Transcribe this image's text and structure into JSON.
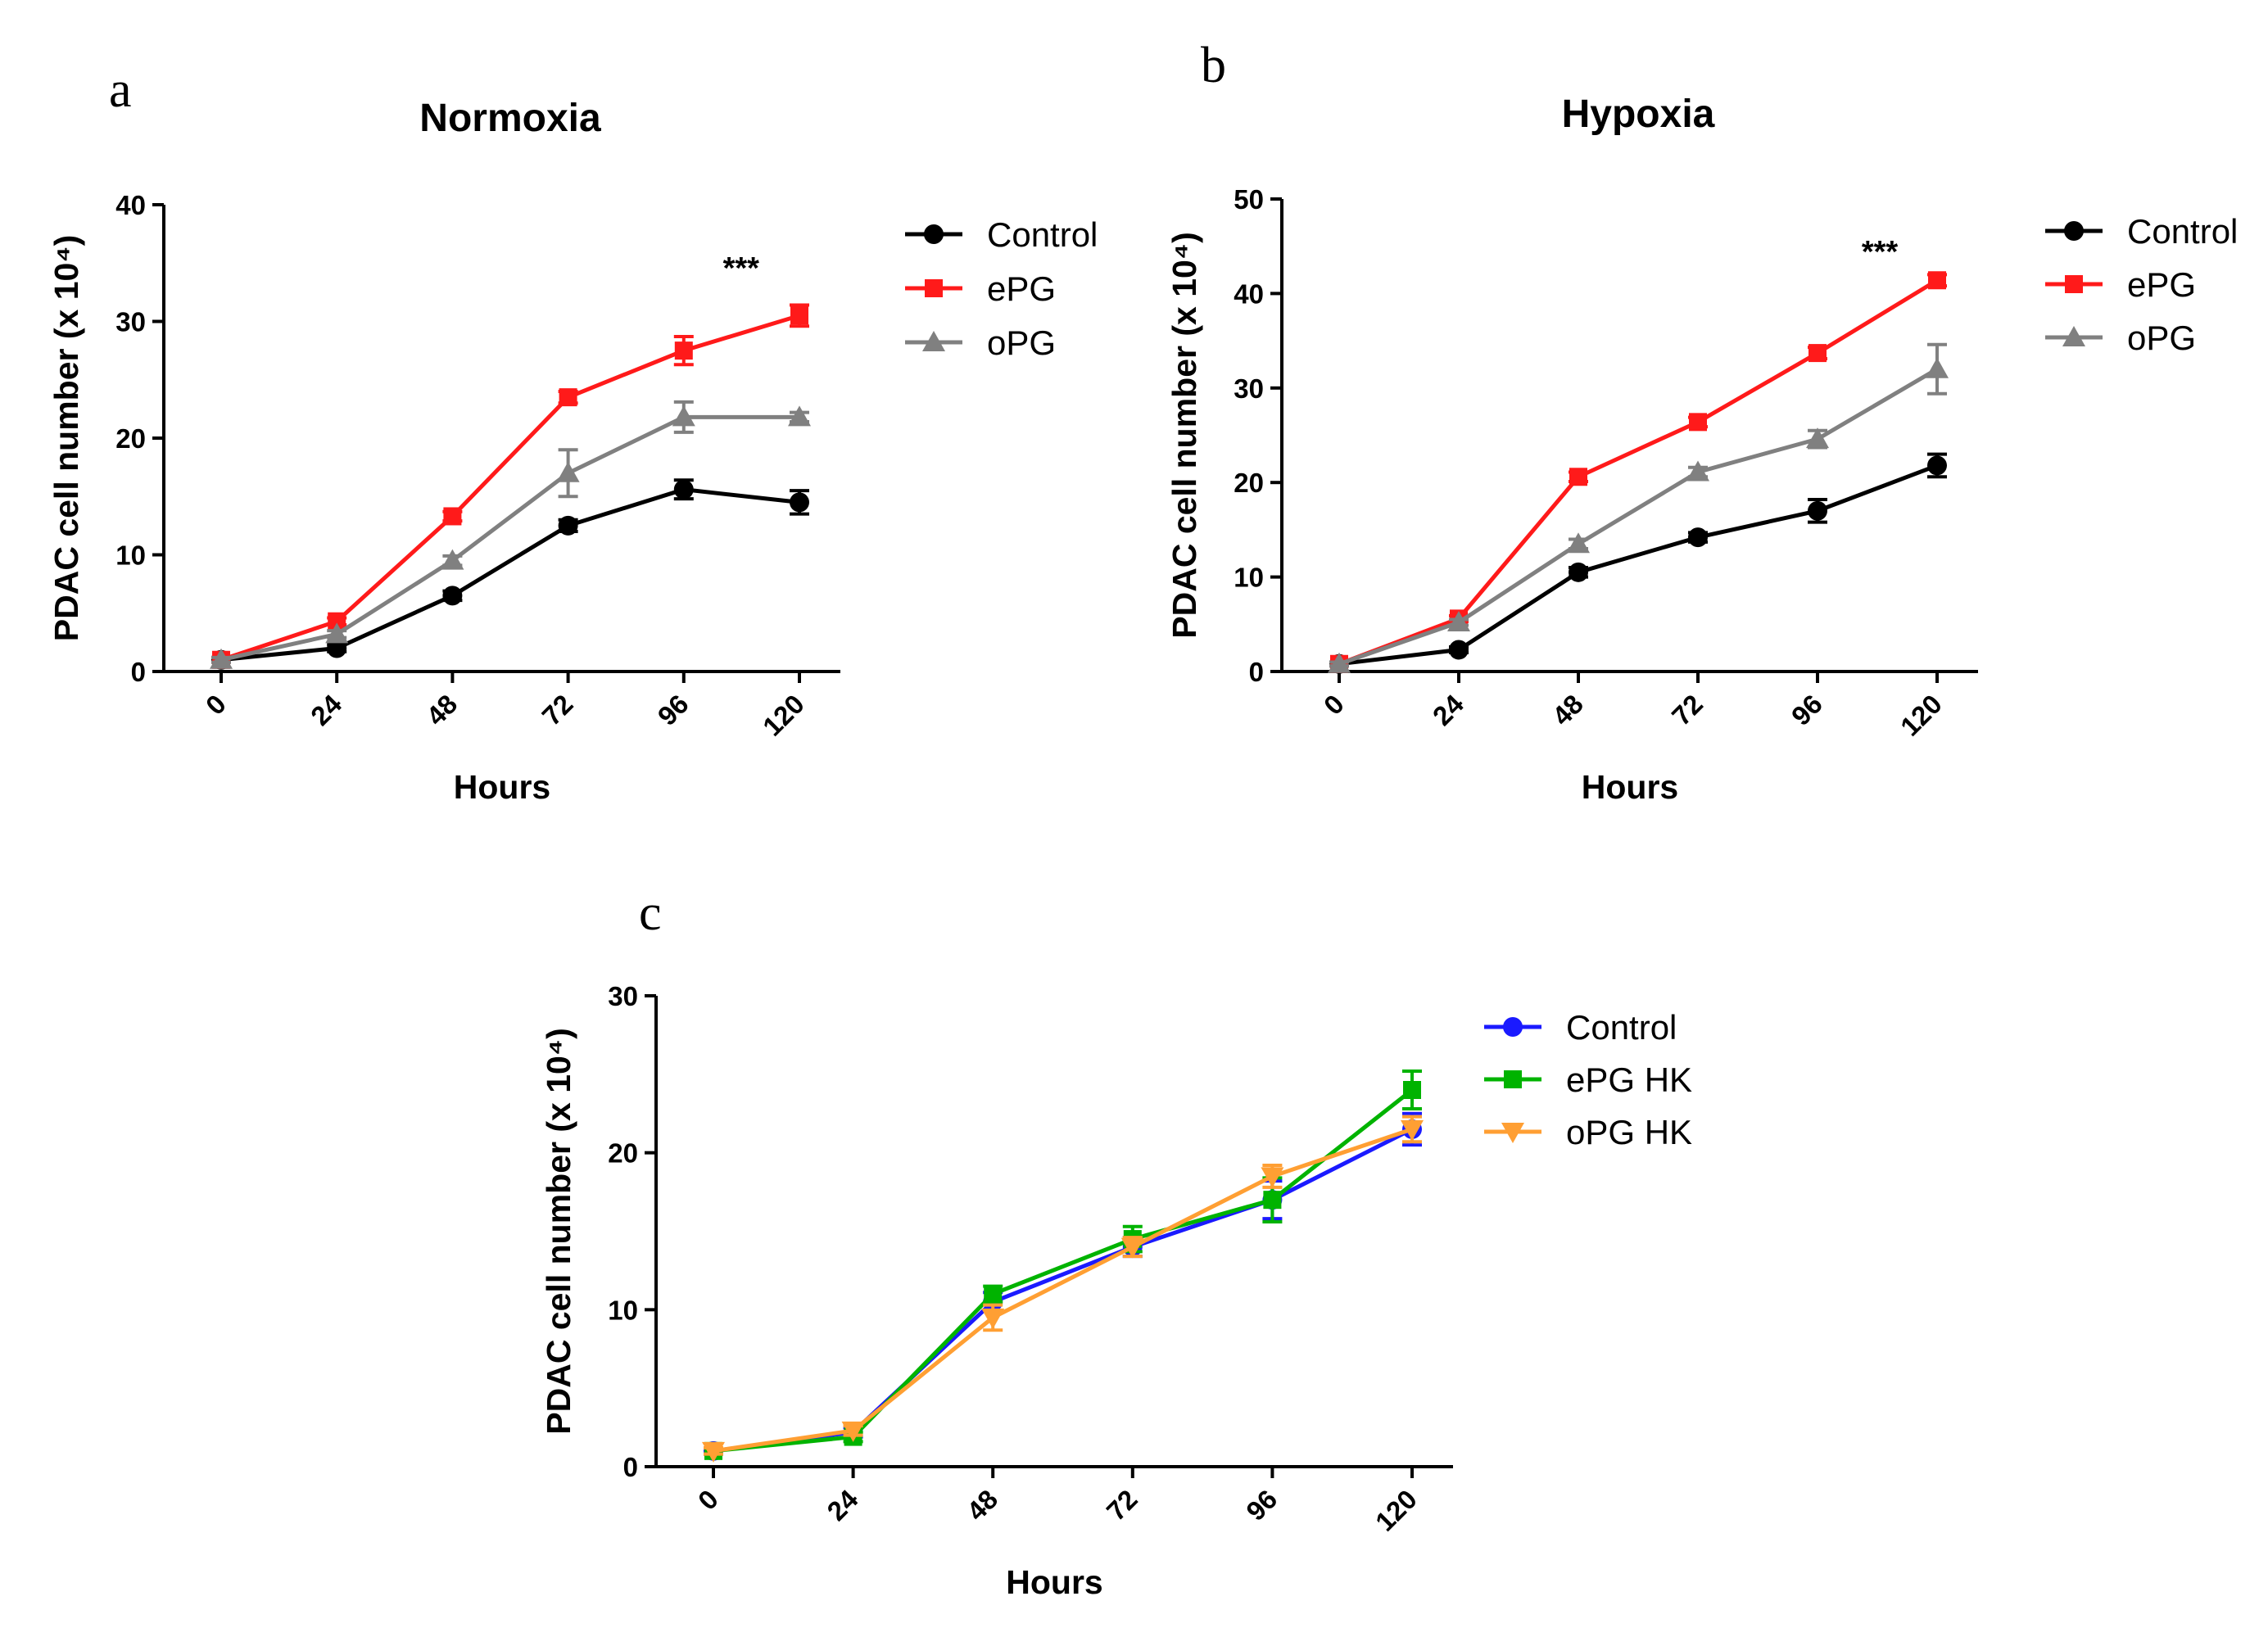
{
  "chart_data": [
    {
      "type": "line",
      "panel": "a",
      "title": "Normoxia",
      "xlabel": "Hours",
      "ylabel": "PDAC cell number (x 10⁴)",
      "categories": [
        "0",
        "24",
        "48",
        "72",
        "96",
        "120"
      ],
      "ylim": [
        0,
        40
      ],
      "yticks": [
        0,
        10,
        20,
        30,
        40
      ],
      "annotation": {
        "text": "***",
        "x_category": "96"
      },
      "legend_position": "right",
      "series": [
        {
          "name": "Control",
          "color": "#000000",
          "marker": "circle",
          "values": [
            1,
            2,
            6.5,
            12.5,
            15.6,
            14.5
          ],
          "err": [
            0.2,
            0.3,
            0.4,
            0.5,
            0.8,
            1.0
          ]
        },
        {
          "name": "ePG",
          "color": "#ff1a1a",
          "marker": "square",
          "values": [
            1,
            4.3,
            13.3,
            23.5,
            27.5,
            30.5
          ],
          "err": [
            0.2,
            0.3,
            0.4,
            0.5,
            1.2,
            0.9
          ]
        },
        {
          "name": "oPG",
          "color": "#808080",
          "marker": "triangle-up",
          "values": [
            1,
            3.2,
            9.5,
            17,
            21.8,
            21.8
          ],
          "err": [
            0.2,
            0.3,
            0.4,
            2.0,
            1.3,
            0.4
          ]
        }
      ]
    },
    {
      "type": "line",
      "panel": "b",
      "title": "Hypoxia",
      "xlabel": "Hours",
      "ylabel": "PDAC cell number (x 10⁴)",
      "categories": [
        "0",
        "24",
        "48",
        "72",
        "96",
        "120"
      ],
      "ylim": [
        0,
        50
      ],
      "yticks": [
        0,
        10,
        20,
        30,
        40,
        50
      ],
      "annotation": {
        "text": "***",
        "x_category": "120"
      },
      "legend_position": "right",
      "series": [
        {
          "name": "Control",
          "color": "#000000",
          "marker": "circle",
          "values": [
            0.8,
            2.3,
            10.5,
            14.2,
            17,
            21.8
          ],
          "err": [
            0.2,
            0.3,
            0.5,
            0.5,
            1.2,
            1.2
          ]
        },
        {
          "name": "ePG",
          "color": "#ff1a1a",
          "marker": "square",
          "values": [
            0.8,
            5.6,
            20.6,
            26.4,
            33.7,
            41.4
          ],
          "err": [
            0.2,
            0.3,
            0.5,
            0.5,
            0.6,
            0.6
          ]
        },
        {
          "name": "oPG",
          "color": "#808080",
          "marker": "triangle-up",
          "values": [
            0.8,
            5.2,
            13.5,
            21.1,
            24.6,
            32
          ],
          "err": [
            0.2,
            0.3,
            0.5,
            0.5,
            0.9,
            2.6
          ]
        }
      ]
    },
    {
      "type": "line",
      "panel": "c",
      "title": "",
      "xlabel": "Hours",
      "ylabel": "PDAC cell number (x 10⁴)",
      "categories": [
        "0",
        "24",
        "48",
        "72",
        "96",
        "120"
      ],
      "ylim": [
        0,
        30
      ],
      "yticks": [
        0,
        10,
        20,
        30
      ],
      "legend_position": "right",
      "series": [
        {
          "name": "Control",
          "color": "#1a1aff",
          "marker": "circle",
          "values": [
            1,
            2.2,
            10.5,
            14,
            17,
            21.5
          ],
          "err": [
            0.2,
            0.3,
            0.6,
            0.6,
            1.2,
            1.0
          ]
        },
        {
          "name": "ePG HK",
          "color": "#00b300",
          "marker": "square",
          "values": [
            1,
            1.9,
            11,
            14.5,
            17,
            24
          ],
          "err": [
            0.2,
            0.3,
            0.5,
            0.8,
            1.4,
            1.2
          ]
        },
        {
          "name": "oPG HK",
          "color": "#ff9f33",
          "marker": "triangle-down",
          "values": [
            1,
            2.3,
            9.5,
            14,
            18.5,
            21.5
          ],
          "err": [
            0.2,
            0.3,
            0.8,
            0.6,
            0.7,
            0.8
          ]
        }
      ]
    }
  ]
}
